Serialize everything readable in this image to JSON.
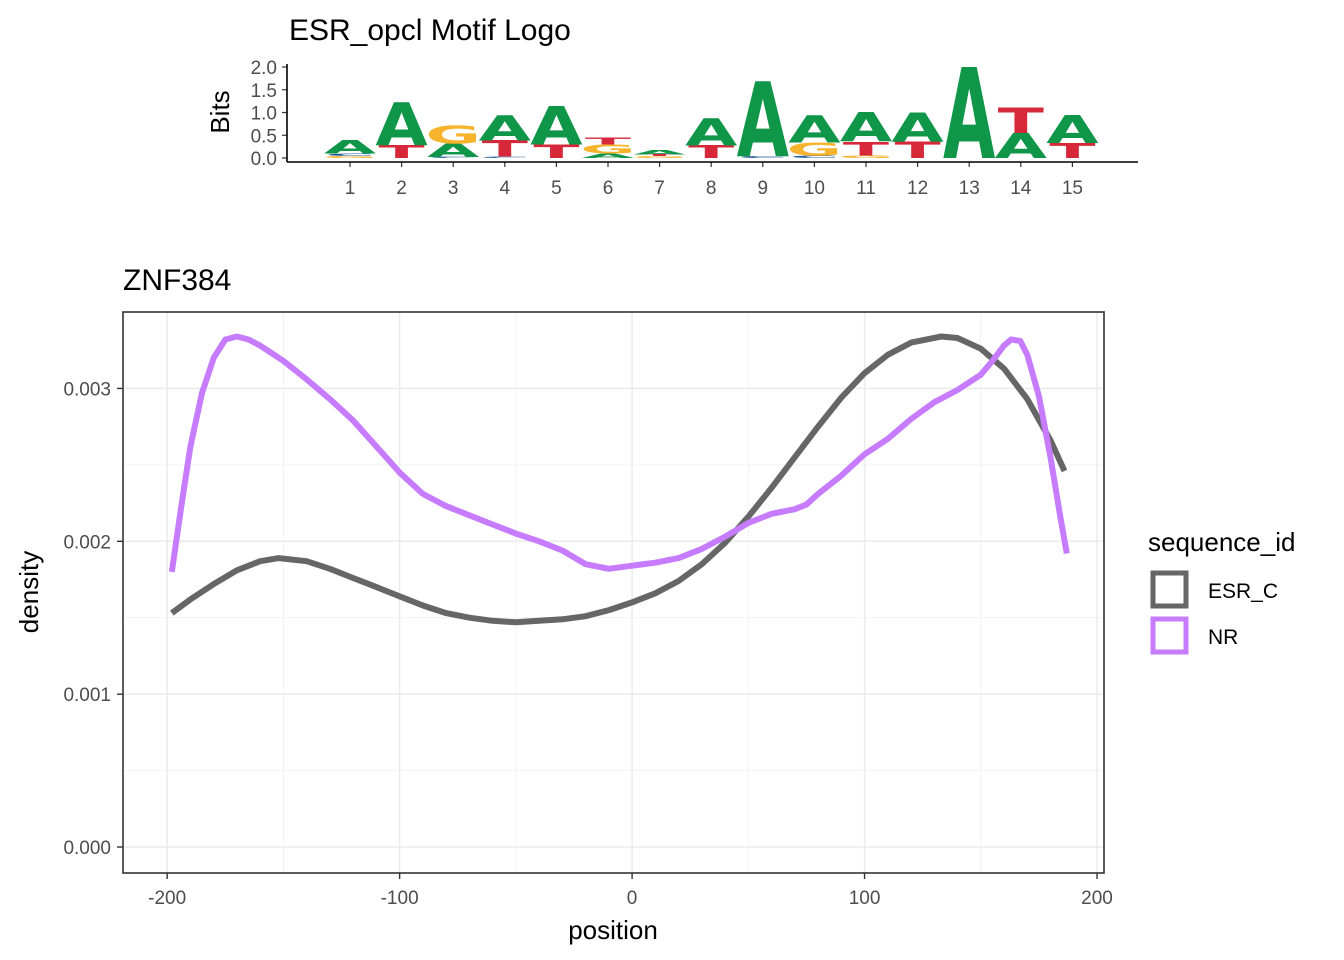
{
  "logo": {
    "title": "ESR_opcl Motif Logo",
    "ylabel": "Bits",
    "ylim": [
      0,
      2
    ],
    "yticks": [
      "2.0",
      "1.5",
      "1.0",
      "0.5",
      "0.0"
    ],
    "colors": {
      "A": "#109648",
      "C": "#255C99",
      "G": "#F7B32B",
      "T": "#D62839"
    },
    "positions": [
      {
        "pos": "1",
        "letters": [
          [
            "G",
            0.04
          ],
          [
            "C",
            0.06
          ],
          [
            "A",
            0.3
          ]
        ]
      },
      {
        "pos": "2",
        "letters": [
          [
            "T",
            0.28
          ],
          [
            "A",
            0.95
          ]
        ]
      },
      {
        "pos": "3",
        "letters": [
          [
            "C",
            0.02
          ],
          [
            "A",
            0.3
          ],
          [
            "G",
            0.4
          ]
        ]
      },
      {
        "pos": "4",
        "letters": [
          [
            "C",
            0.03
          ],
          [
            "T",
            0.35
          ],
          [
            "A",
            0.55
          ]
        ]
      },
      {
        "pos": "5",
        "letters": [
          [
            "T",
            0.3
          ],
          [
            "A",
            0.85
          ]
        ]
      },
      {
        "pos": "6",
        "letters": [
          [
            "A",
            0.1
          ],
          [
            "G",
            0.2
          ],
          [
            "T",
            0.15
          ]
        ]
      },
      {
        "pos": "7",
        "letters": [
          [
            "G",
            0.04
          ],
          [
            "T",
            0.04
          ],
          [
            "A",
            0.1
          ]
        ]
      },
      {
        "pos": "8",
        "letters": [
          [
            "T",
            0.28
          ],
          [
            "A",
            0.6
          ]
        ]
      },
      {
        "pos": "9",
        "letters": [
          [
            "C",
            0.04
          ],
          [
            "A",
            1.65
          ]
        ]
      },
      {
        "pos": "10",
        "letters": [
          [
            "C",
            0.06
          ],
          [
            "G",
            0.28
          ],
          [
            "A",
            0.6
          ]
        ]
      },
      {
        "pos": "11",
        "letters": [
          [
            "G",
            0.06
          ],
          [
            "T",
            0.3
          ],
          [
            "A",
            0.65
          ]
        ]
      },
      {
        "pos": "12",
        "letters": [
          [
            "T",
            0.35
          ],
          [
            "A",
            0.65
          ]
        ]
      },
      {
        "pos": "13",
        "letters": [
          [
            "A",
            2.0
          ]
        ]
      },
      {
        "pos": "14",
        "letters": [
          [
            "A",
            0.55
          ],
          [
            "T",
            0.55
          ]
        ]
      },
      {
        "pos": "15",
        "letters": [
          [
            "T",
            0.33
          ],
          [
            "A",
            0.62
          ]
        ]
      }
    ]
  },
  "chart_data": {
    "type": "line",
    "title": "ZNF384",
    "xlabel": "position",
    "ylabel": "density",
    "xlim": [
      -219,
      203
    ],
    "ylim": [
      -0.00017,
      0.0035
    ],
    "xticks": [
      -200,
      -100,
      0,
      100,
      200
    ],
    "xtick_labels": [
      "-200",
      "-100",
      "0",
      "100",
      "200"
    ],
    "yticks": [
      0.0,
      0.001,
      0.002,
      0.003
    ],
    "ytick_labels": [
      "0.000",
      "0.001",
      "0.002",
      "0.003"
    ],
    "grid": true,
    "legend_title": "sequence_id",
    "legend_position": "right",
    "series": [
      {
        "name": "ESR_C",
        "color": "#666666",
        "points": [
          [
            -198,
            0.00153
          ],
          [
            -190,
            0.00162
          ],
          [
            -180,
            0.00172
          ],
          [
            -170,
            0.00181
          ],
          [
            -160,
            0.00187
          ],
          [
            -152,
            0.00189
          ],
          [
            -140,
            0.00187
          ],
          [
            -130,
            0.00182
          ],
          [
            -120,
            0.00176
          ],
          [
            -110,
            0.0017
          ],
          [
            -100,
            0.00164
          ],
          [
            -90,
            0.00158
          ],
          [
            -80,
            0.00153
          ],
          [
            -70,
            0.0015
          ],
          [
            -60,
            0.00148
          ],
          [
            -50,
            0.00147
          ],
          [
            -40,
            0.00148
          ],
          [
            -30,
            0.00149
          ],
          [
            -20,
            0.00151
          ],
          [
            -10,
            0.00155
          ],
          [
            0,
            0.0016
          ],
          [
            10,
            0.00166
          ],
          [
            20,
            0.00174
          ],
          [
            30,
            0.00185
          ],
          [
            40,
            0.00199
          ],
          [
            50,
            0.00216
          ],
          [
            60,
            0.00235
          ],
          [
            70,
            0.00255
          ],
          [
            80,
            0.00275
          ],
          [
            90,
            0.00294
          ],
          [
            100,
            0.0031
          ],
          [
            110,
            0.00322
          ],
          [
            120,
            0.0033
          ],
          [
            133,
            0.00334
          ],
          [
            140,
            0.00333
          ],
          [
            150,
            0.00326
          ],
          [
            160,
            0.00313
          ],
          [
            170,
            0.00293
          ],
          [
            180,
            0.00266
          ],
          [
            186,
            0.00246
          ]
        ]
      },
      {
        "name": "NR",
        "color": "#C77CFF",
        "points": [
          [
            -198,
            0.0018
          ],
          [
            -194,
            0.00222
          ],
          [
            -190,
            0.00262
          ],
          [
            -185,
            0.00297
          ],
          [
            -180,
            0.0032
          ],
          [
            -175,
            0.00332
          ],
          [
            -170,
            0.00334
          ],
          [
            -165,
            0.00332
          ],
          [
            -160,
            0.00328
          ],
          [
            -150,
            0.00318
          ],
          [
            -140,
            0.00306
          ],
          [
            -130,
            0.00293
          ],
          [
            -120,
            0.00279
          ],
          [
            -110,
            0.00262
          ],
          [
            -100,
            0.00245
          ],
          [
            -90,
            0.00231
          ],
          [
            -80,
            0.00223
          ],
          [
            -70,
            0.00217
          ],
          [
            -60,
            0.00211
          ],
          [
            -50,
            0.00205
          ],
          [
            -40,
            0.002
          ],
          [
            -30,
            0.00194
          ],
          [
            -20,
            0.00185
          ],
          [
            -10,
            0.00182
          ],
          [
            0,
            0.00184
          ],
          [
            10,
            0.00186
          ],
          [
            20,
            0.00189
          ],
          [
            30,
            0.00195
          ],
          [
            40,
            0.00203
          ],
          [
            50,
            0.00212
          ],
          [
            60,
            0.00218
          ],
          [
            70,
            0.00221
          ],
          [
            75,
            0.00224
          ],
          [
            80,
            0.00231
          ],
          [
            90,
            0.00243
          ],
          [
            100,
            0.00257
          ],
          [
            110,
            0.00267
          ],
          [
            120,
            0.0028
          ],
          [
            130,
            0.00291
          ],
          [
            140,
            0.00299
          ],
          [
            150,
            0.00309
          ],
          [
            155,
            0.00318
          ],
          [
            160,
            0.00328
          ],
          [
            163,
            0.00332
          ],
          [
            167,
            0.00331
          ],
          [
            170,
            0.00322
          ],
          [
            175,
            0.00295
          ],
          [
            180,
            0.00255
          ],
          [
            184,
            0.00218
          ],
          [
            187,
            0.00192
          ]
        ]
      }
    ]
  }
}
